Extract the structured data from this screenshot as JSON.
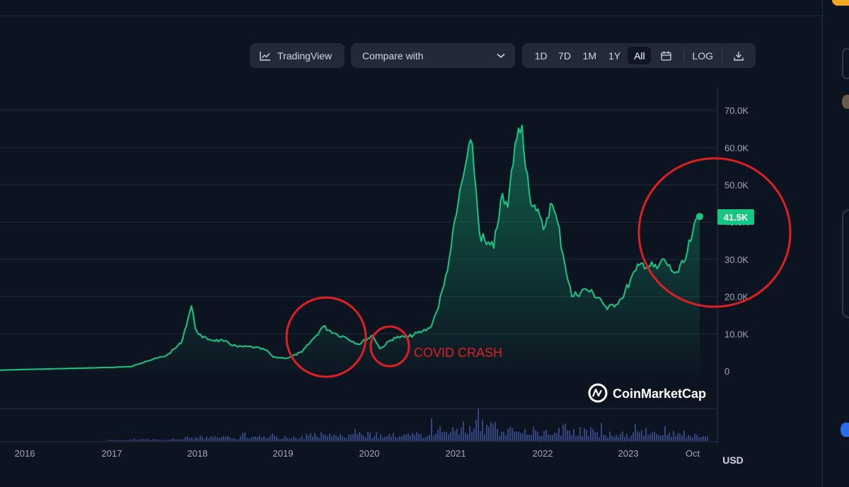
{
  "toolbar": {
    "tradingview_label": "TradingView",
    "compare_label": "Compare with",
    "ranges": [
      "1D",
      "7D",
      "1M",
      "1Y",
      "All"
    ],
    "active_range": "All",
    "log_label": "LOG"
  },
  "chart_data": {
    "type": "area",
    "yticks": [
      "70.0K",
      "60.0K",
      "50.0K",
      "40.0K",
      "30.0K",
      "20.0K",
      "10.0K",
      "0"
    ],
    "ylim": [
      0,
      70000
    ],
    "xticks": [
      "2016",
      "2017",
      "2018",
      "2019",
      "2020",
      "2021",
      "2022",
      "2023",
      "Oct"
    ],
    "currency_label": "USD",
    "current_price_label": "41.5K",
    "current_price": 41500,
    "watermark": "CoinMarketCap",
    "annotation": "COVID CRASH",
    "line_color": "#16c784",
    "annotation_color": "#e02020",
    "series": [
      {
        "x": [
          "2015-08",
          "2016-01",
          "2016-06",
          "2017-01",
          "2017-04",
          "2017-06",
          "2017-09",
          "2017-11",
          "2017-12-15",
          "2018-01",
          "2018-02",
          "2018-03",
          "2018-05",
          "2018-07",
          "2018-09",
          "2018-11",
          "2018-12",
          "2019-02",
          "2019-04",
          "2019-06",
          "2019-07",
          "2019-09",
          "2019-10",
          "2019-12",
          "2020-02",
          "2020-03",
          "2020-05",
          "2020-07",
          "2020-09",
          "2020-10",
          "2020-11",
          "2020-12",
          "2021-01",
          "2021-02",
          "2021-03",
          "2021-04",
          "2021-05",
          "2021-06",
          "2021-07",
          "2021-08",
          "2021-09",
          "2021-10",
          "2021-11",
          "2021-12",
          "2022-01",
          "2022-02",
          "2022-03",
          "2022-04",
          "2022-05",
          "2022-06",
          "2022-08",
          "2022-10",
          "2022-11",
          "2023-01",
          "2023-03",
          "2023-04",
          "2023-06",
          "2023-07",
          "2023-08",
          "2023-09",
          "2023-10",
          "2023-11",
          "2023-12"
        ],
        "values": [
          230,
          430,
          650,
          980,
          1200,
          2600,
          4200,
          7500,
          17500,
          11500,
          9000,
          8500,
          8000,
          6500,
          6500,
          5600,
          3700,
          3500,
          5100,
          9500,
          12000,
          9800,
          9200,
          7200,
          9600,
          6000,
          9000,
          9200,
          10700,
          11500,
          16000,
          23000,
          33000,
          45000,
          55000,
          61000,
          37000,
          34000,
          33000,
          46000,
          44000,
          61000,
          66000,
          48000,
          43000,
          38000,
          45000,
          40000,
          29000,
          20000,
          22000,
          19500,
          16500,
          19500,
          27000,
          29000,
          27500,
          30000,
          27000,
          26500,
          30000,
          37000,
          41500
        ]
      }
    ]
  }
}
